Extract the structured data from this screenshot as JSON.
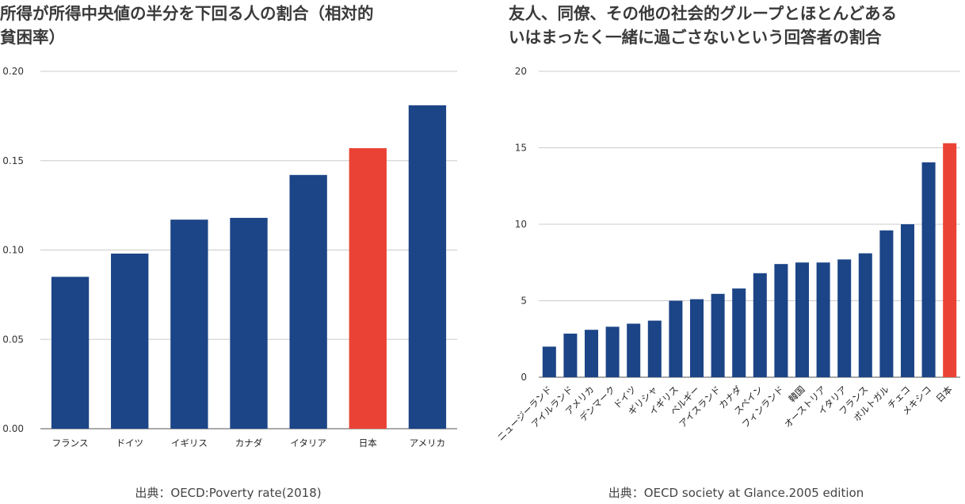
{
  "chart_data": [
    {
      "type": "bar",
      "title": "所得が所得中央値の半分を下回る人の割合（相対的貧困率）",
      "title_lines": [
        "所得が所得中央値の半分を下回る人の割合（相対的",
        "貧困率）"
      ],
      "categories": [
        "フランス",
        "ドイツ",
        "イギリス",
        "カナダ",
        "イタリア",
        "日本",
        "アメリカ"
      ],
      "values": [
        0.085,
        0.098,
        0.117,
        0.118,
        0.142,
        0.157,
        0.181
      ],
      "highlight": "日本",
      "ylim": [
        0,
        0.2
      ],
      "yticks": [
        "0.00",
        "0.05",
        "0.10",
        "0.15",
        "0.20"
      ],
      "grid": true,
      "colors": {
        "bar": "#1c4587",
        "highlight": "#ea4335"
      },
      "source": "出典：OECD:Poverty rate(2018)"
    },
    {
      "type": "bar",
      "title": "友人、同僚、その他の社会的グループとほとんどあるいはまったく一緒に過ごさないという回答者の割合",
      "title_lines": [
        "友人、同僚、その他の社会的グループとほとんどある",
        "いはまったく一緒に過ごさないという回答者の割合"
      ],
      "categories": [
        "ニュージーランド",
        "アイルランド",
        "アメリカ",
        "デンマーク",
        "ドイツ",
        "ギリシャ",
        "イギリス",
        "ベルギー",
        "アイスランド",
        "カナダ",
        "スペイン",
        "フィンランド",
        "韓国",
        "オーストリア",
        "イタリア",
        "フランス",
        "ポルトガル",
        "チェコ",
        "メキシコ",
        "日本"
      ],
      "values": [
        2.0,
        2.85,
        3.1,
        3.3,
        3.5,
        3.7,
        5.0,
        5.1,
        5.45,
        5.8,
        6.8,
        7.4,
        7.5,
        7.5,
        7.7,
        8.1,
        9.6,
        10.0,
        14.05,
        15.3
      ],
      "highlight": "日本",
      "ylim": [
        0,
        20
      ],
      "yticks": [
        "0",
        "5",
        "10",
        "15",
        "20"
      ],
      "grid": true,
      "colors": {
        "bar": "#1c4587",
        "highlight": "#ea4335"
      },
      "source": "出典：OECD society at Glance.2005 edition"
    }
  ]
}
